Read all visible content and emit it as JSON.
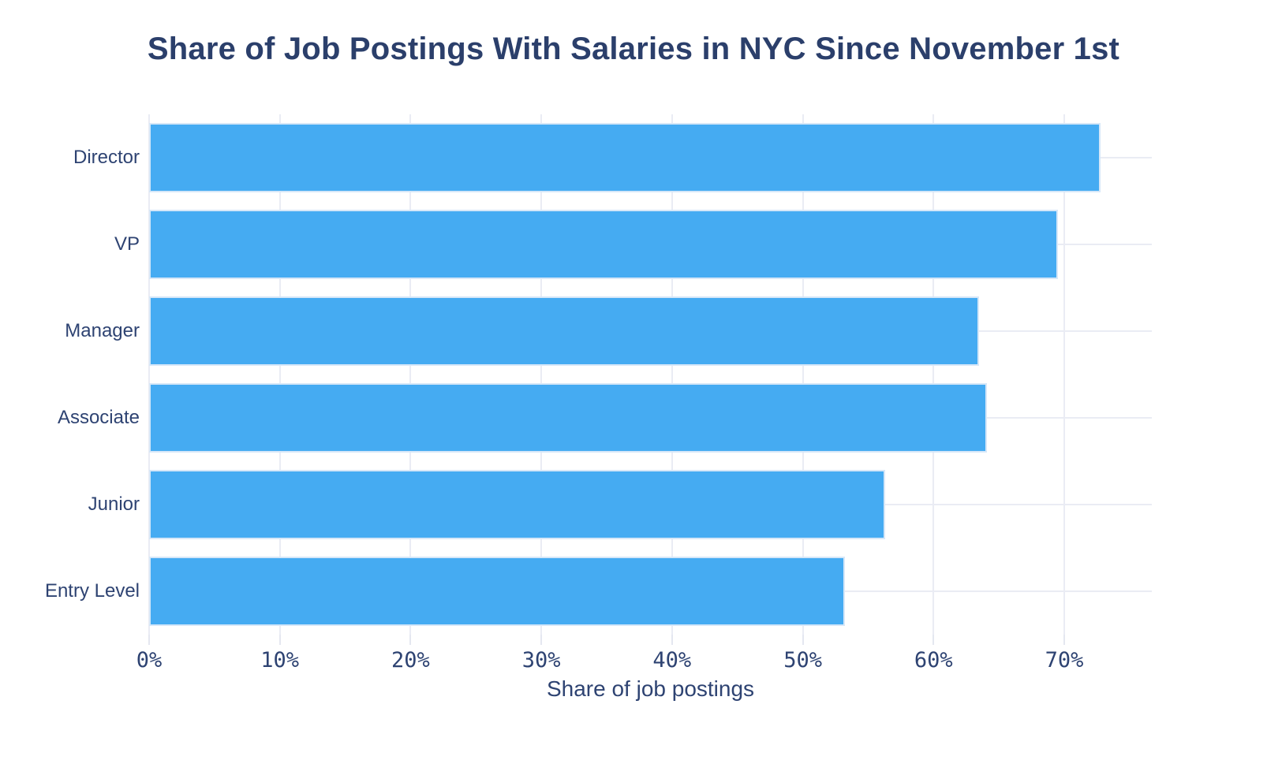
{
  "chart_data": {
    "type": "bar",
    "orientation": "horizontal",
    "title": "Share of Job Postings With Salaries in NYC Since November 1st",
    "xlabel": "Share of job postings",
    "categories": [
      "Director",
      "VP",
      "Manager",
      "Associate",
      "Junior",
      "Entry Level"
    ],
    "values": [
      72.8,
      69.5,
      63.5,
      64.1,
      56.3,
      53.2
    ],
    "value_unit": "%",
    "xlim": [
      0,
      76.7
    ],
    "x_tick_values": [
      0,
      10,
      20,
      30,
      40,
      50,
      60,
      70
    ],
    "x_tick_labels": [
      "0%",
      "10%",
      "20%",
      "30%",
      "40%",
      "50%",
      "60%",
      "70%"
    ],
    "grid": true,
    "legend": "none",
    "colors": {
      "bar_fill": "#45abf2",
      "bar_border": "#d6e7f8",
      "gridline": "#eaecf4",
      "tick": "#e4e7f0",
      "title_text": "#2b3f6b",
      "axis_text": "#2e4372",
      "background": "#ffffff"
    }
  }
}
